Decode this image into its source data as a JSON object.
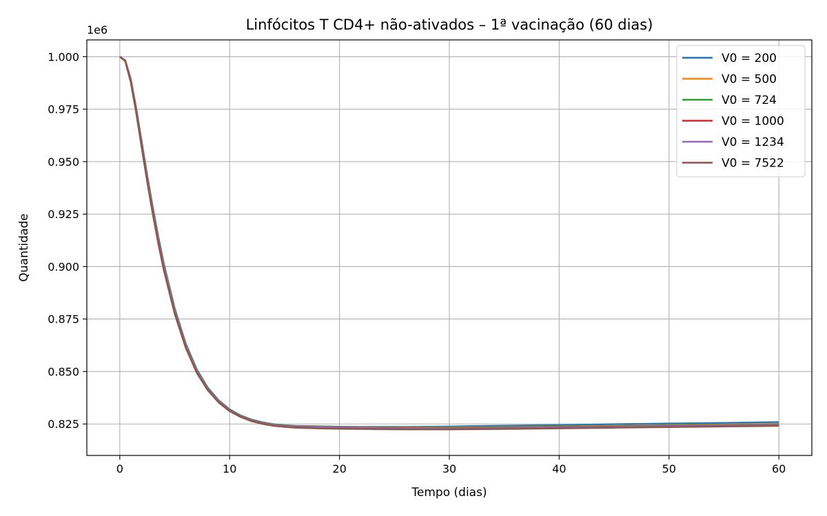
{
  "chart_data": {
    "type": "line",
    "title": "Linfócitos T CD4+ não-ativados – 1ª vacinação (60 dias)",
    "xlabel": "Tempo (dias)",
    "ylabel": "Quantidade",
    "y_offset_label": "1e6",
    "xlim": [
      -3,
      63
    ],
    "ylim": [
      0.81,
      1.008
    ],
    "x_ticks": [
      0,
      10,
      20,
      30,
      40,
      50,
      60
    ],
    "x_tick_labels": [
      "0",
      "10",
      "20",
      "30",
      "40",
      "50",
      "60"
    ],
    "y_ticks": [
      0.825,
      0.85,
      0.875,
      0.9,
      0.925,
      0.95,
      0.975,
      1.0
    ],
    "y_tick_labels": [
      "0.825",
      "0.850",
      "0.875",
      "0.900",
      "0.925",
      "0.950",
      "0.975",
      "1.000"
    ],
    "grid": true,
    "legend_position": "top-right",
    "x": [
      0,
      0.5,
      1,
      1.5,
      2,
      2.5,
      3,
      3.5,
      4,
      5,
      6,
      7,
      8,
      9,
      10,
      11,
      12,
      13,
      14,
      15,
      16,
      18,
      20,
      22,
      24,
      26,
      28,
      30,
      32,
      35,
      40,
      45,
      50,
      55,
      60
    ],
    "series": [
      {
        "name": "V0 = 200",
        "color": "#1f77b4",
        "values": [
          1.0,
          0.9983,
          0.9895,
          0.9755,
          0.9594,
          0.9435,
          0.9285,
          0.9145,
          0.9017,
          0.8801,
          0.8634,
          0.8511,
          0.8424,
          0.8363,
          0.832,
          0.8291,
          0.8271,
          0.8258,
          0.8249,
          0.8244,
          0.8241,
          0.8239,
          0.8237,
          0.8236,
          0.8236,
          0.8236,
          0.8237,
          0.8238,
          0.824,
          0.8242,
          0.8245,
          0.8249,
          0.8252,
          0.8255,
          0.8259
        ]
      },
      {
        "name": "V0 = 500",
        "color": "#ff7f0e",
        "values": [
          1.0,
          0.9981,
          0.9888,
          0.9744,
          0.9581,
          0.9421,
          0.927,
          0.913,
          0.9003,
          0.8789,
          0.8624,
          0.8503,
          0.8418,
          0.8358,
          0.8316,
          0.8288,
          0.8268,
          0.8256,
          0.8247,
          0.8242,
          0.8239,
          0.8237,
          0.8235,
          0.8234,
          0.8233,
          0.8233,
          0.8233,
          0.8233,
          0.8234,
          0.8235,
          0.8238,
          0.8241,
          0.8244,
          0.8247,
          0.825
        ]
      },
      {
        "name": "V0 = 724",
        "color": "#2ca02c",
        "values": [
          1.0,
          0.998,
          0.9885,
          0.974,
          0.9576,
          0.9415,
          0.9264,
          0.9124,
          0.8997,
          0.8784,
          0.862,
          0.85,
          0.8416,
          0.8356,
          0.8315,
          0.8287,
          0.8267,
          0.8255,
          0.8246,
          0.8241,
          0.8238,
          0.8236,
          0.8234,
          0.8233,
          0.8232,
          0.8231,
          0.8231,
          0.8231,
          0.8232,
          0.8233,
          0.8236,
          0.8239,
          0.8242,
          0.8245,
          0.8248
        ]
      },
      {
        "name": "V0 = 1000",
        "color": "#d62728",
        "values": [
          1.0,
          0.998,
          0.9883,
          0.9737,
          0.9572,
          0.9411,
          0.926,
          0.912,
          0.8993,
          0.8781,
          0.8618,
          0.8498,
          0.8414,
          0.8355,
          0.8314,
          0.8286,
          0.8266,
          0.8254,
          0.8245,
          0.824,
          0.8237,
          0.8235,
          0.8233,
          0.8232,
          0.8231,
          0.823,
          0.8229,
          0.8229,
          0.823,
          0.8231,
          0.8234,
          0.8237,
          0.824,
          0.8243,
          0.8246
        ]
      },
      {
        "name": "V0 = 1234",
        "color": "#9467bd",
        "values": [
          1.0,
          0.9979,
          0.9881,
          0.9735,
          0.957,
          0.9409,
          0.9257,
          0.9117,
          0.8991,
          0.8779,
          0.8617,
          0.8497,
          0.8413,
          0.8354,
          0.8313,
          0.8285,
          0.8265,
          0.8253,
          0.8244,
          0.8239,
          0.8236,
          0.8234,
          0.8232,
          0.8231,
          0.823,
          0.8229,
          0.8228,
          0.8228,
          0.8229,
          0.823,
          0.8233,
          0.8236,
          0.8239,
          0.8242,
          0.8245
        ]
      },
      {
        "name": "V0 = 7522",
        "color": "#8c564b",
        "values": [
          1.0,
          0.9978,
          0.9878,
          0.973,
          0.9564,
          0.9402,
          0.925,
          0.911,
          0.8984,
          0.8774,
          0.8613,
          0.8494,
          0.8411,
          0.8352,
          0.8311,
          0.8283,
          0.8263,
          0.825,
          0.8241,
          0.8236,
          0.8232,
          0.8229,
          0.8227,
          0.8226,
          0.8225,
          0.8224,
          0.8224,
          0.8224,
          0.8225,
          0.8226,
          0.8229,
          0.8232,
          0.8235,
          0.8238,
          0.8241
        ]
      }
    ]
  }
}
